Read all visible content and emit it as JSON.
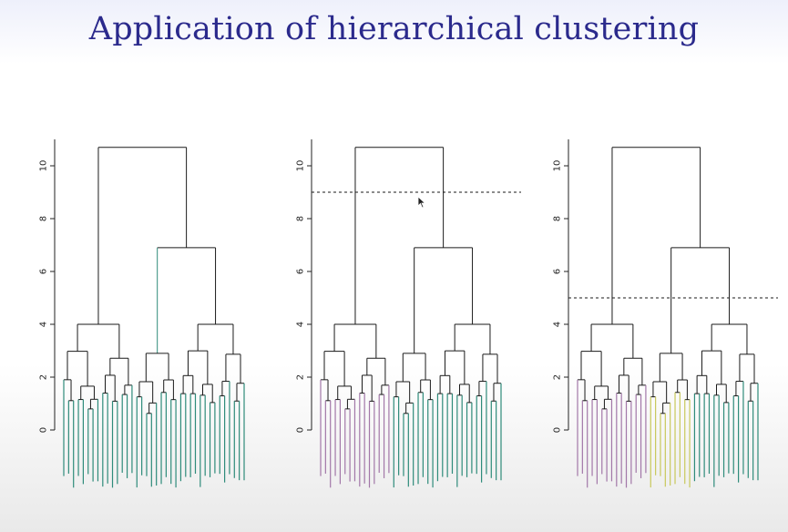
{
  "slide": {
    "title": "Application of hierarchical clustering"
  },
  "colors": {
    "title": "#2b2a8c",
    "tree_lines": "#1a1a1a",
    "cluster_teal": "#2e8b7a",
    "cluster_purple": "#a277a8",
    "cluster_olive": "#c8c85a",
    "cut_line": "#1a1a1a"
  },
  "axis": {
    "ticks": [
      "0",
      "2",
      "4",
      "6",
      "8",
      "10"
    ],
    "tick_values": [
      0,
      2,
      4,
      6,
      8,
      10
    ],
    "ylim": [
      -2,
      11
    ]
  },
  "dendrogram": {
    "root_height": 10.7,
    "left_branch": {
      "height": 4.0
    },
    "right_branch": {
      "height": 6.9,
      "children": [
        {
          "height": 2.9
        },
        {
          "height": 4.0
        }
      ]
    },
    "leaf_count_per_group": [
      15,
      9,
      14
    ]
  },
  "panels": [
    {
      "name": "panel-1",
      "cut_height": null,
      "clusters": 1,
      "group_colors": [
        "teal",
        "teal",
        "teal"
      ]
    },
    {
      "name": "panel-2",
      "cut_height": 9,
      "clusters": 2,
      "group_colors": [
        "purple",
        "teal",
        "teal"
      ]
    },
    {
      "name": "panel-3",
      "cut_height": 5,
      "clusters": 3,
      "group_colors": [
        "purple",
        "olive",
        "teal"
      ]
    }
  ]
}
